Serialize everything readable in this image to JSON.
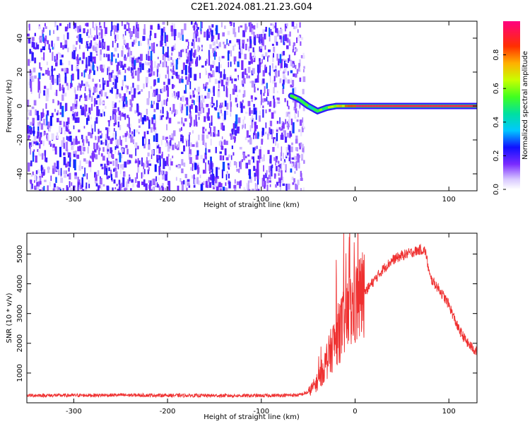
{
  "title": "C2E1.2024.081.21.23.G04",
  "chart_data": [
    {
      "type": "heatmap",
      "xlabel": "Height of straight line (km)",
      "ylabel": "Frequency (Hz)",
      "xlim": [
        -350,
        130
      ],
      "ylim": [
        -50,
        50
      ],
      "x_ticks": [
        -300,
        -200,
        -100,
        0,
        100
      ],
      "y_ticks": [
        -40,
        -20,
        0,
        20,
        40
      ],
      "colorbar": {
        "label": "Normalized spectral amplitude",
        "range": [
          0,
          1
        ],
        "ticks": [
          0.0,
          0.2,
          0.4,
          0.6,
          0.8
        ]
      },
      "noise_region": {
        "x_range": [
          -350,
          -55
        ],
        "amplitude": [
          0.1,
          0.3
        ]
      },
      "signal_trace": {
        "x": [
          -68,
          -60,
          -50,
          -40,
          -30,
          -20,
          -10,
          0,
          130
        ],
        "frequency": [
          6,
          4,
          0,
          -3,
          -1,
          0,
          0,
          0,
          0
        ],
        "amplitude": [
          0.5,
          0.55,
          0.45,
          0.5,
          0.6,
          0.7,
          0.8,
          0.95,
          0.95
        ]
      }
    },
    {
      "type": "line",
      "xlabel": "Height of straight line (km)",
      "ylabel": "SNR (10 * v/v)",
      "xlim": [
        -350,
        130
      ],
      "ylim": [
        0,
        5700
      ],
      "x_ticks": [
        -300,
        -200,
        -100,
        0,
        100
      ],
      "y_ticks": [
        1000,
        2000,
        3000,
        4000,
        5000
      ],
      "color": "#ef3030",
      "series": [
        {
          "x": [
            -350,
            -300,
            -250,
            -200,
            -150,
            -100,
            -60,
            -50,
            -40,
            -30,
            -20,
            -10,
            0,
            10,
            20,
            30,
            40,
            50,
            60,
            70,
            75,
            80,
            90,
            100,
            110,
            120,
            130
          ],
          "values": [
            250,
            250,
            260,
            250,
            240,
            240,
            260,
            350,
            700,
            1400,
            2200,
            2800,
            3300,
            3700,
            4100,
            4500,
            4800,
            4950,
            5050,
            5150,
            5100,
            4200,
            3800,
            3300,
            2500,
            2000,
            1700
          ]
        }
      ]
    }
  ]
}
